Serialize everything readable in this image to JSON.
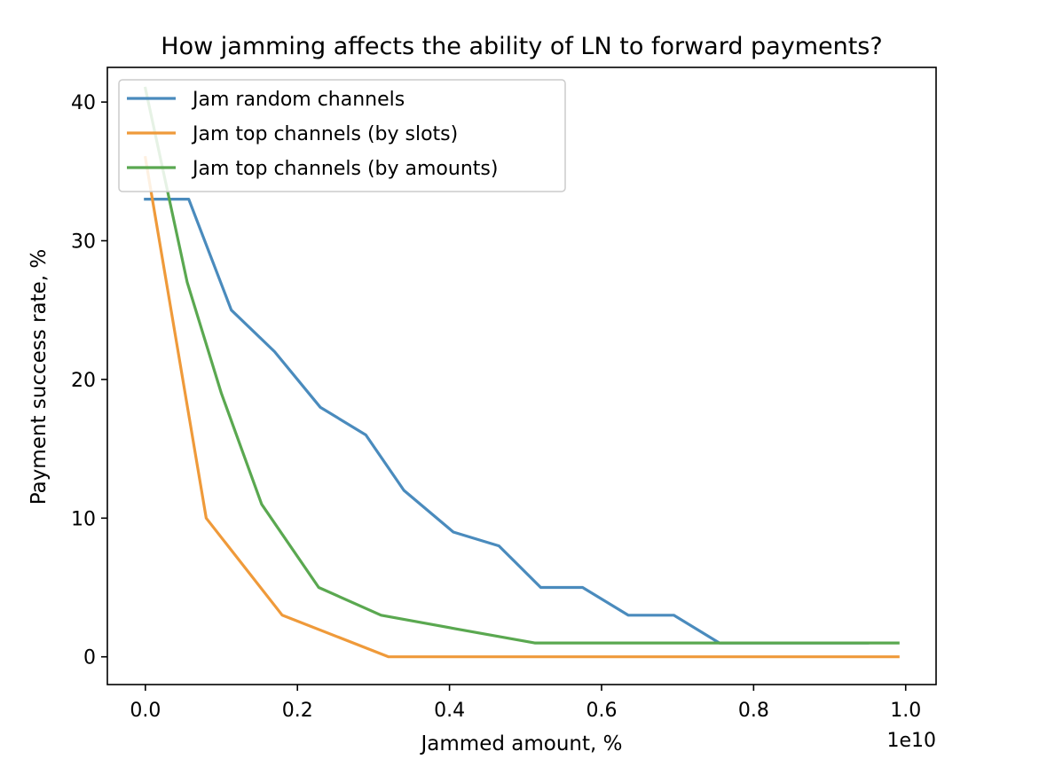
{
  "chart_data": {
    "type": "line",
    "title": "How jamming affects the ability of LN to forward payments?",
    "xlabel": "Jammed amount, %",
    "ylabel": "Payment success rate, %",
    "x_offset_label": "1e10",
    "xlim": [
      -0.05,
      1.04
    ],
    "ylim": [
      -2,
      42.5
    ],
    "xticks": [
      0.0,
      0.2,
      0.4,
      0.6,
      0.8,
      1.0
    ],
    "xtick_labels": [
      "0.0",
      "0.2",
      "0.4",
      "0.6",
      "0.8",
      "1.0"
    ],
    "yticks": [
      0,
      10,
      20,
      30,
      40
    ],
    "ytick_labels": [
      "0",
      "10",
      "20",
      "30",
      "40"
    ],
    "grid": false,
    "legend_position": "upper left",
    "series": [
      {
        "name": "Jam random channels",
        "color": "#4a8bbd",
        "x": [
          0.0,
          0.057,
          0.113,
          0.17,
          0.23,
          0.29,
          0.34,
          0.405,
          0.465,
          0.52,
          0.575,
          0.635,
          0.695,
          0.755,
          0.81,
          0.95
        ],
        "y": [
          33,
          33,
          25,
          22,
          18,
          16,
          12,
          9,
          8,
          5,
          5,
          3,
          3,
          1,
          1,
          1
        ]
      },
      {
        "name": "Jam top channels (by slots)",
        "color": "#ef9a3a",
        "x": [
          0.0,
          0.08,
          0.18,
          0.32,
          0.5,
          0.7,
          0.99
        ],
        "y": [
          36,
          10,
          3,
          0,
          0,
          0,
          0
        ]
      },
      {
        "name": "Jam top channels (by amounts)",
        "color": "#5aa850",
        "x": [
          0.0,
          0.055,
          0.1,
          0.153,
          0.228,
          0.31,
          0.41,
          0.512,
          0.6,
          0.8,
          0.99
        ],
        "y": [
          41,
          27,
          19,
          11,
          5,
          3,
          2,
          1,
          1,
          1,
          1
        ]
      }
    ]
  }
}
